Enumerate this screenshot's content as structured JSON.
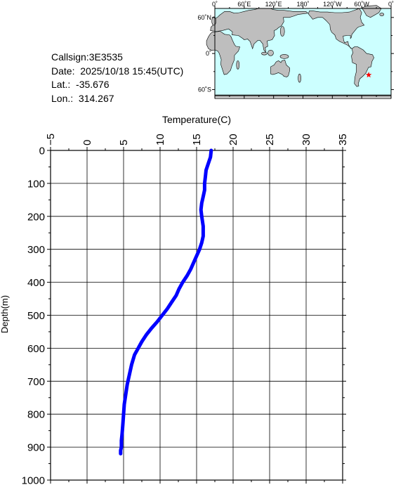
{
  "station": {
    "callsign_label": "Callsign:",
    "callsign": "3E3535",
    "date_label": "Date:",
    "date": "2025/10/18 15:45(UTC)",
    "lat_label": "Lat.:",
    "lat": "-35.676",
    "lon_label": "Lon.:",
    "lon": "314.267"
  },
  "map": {
    "lon_ticks": [
      "0˚",
      "60˚E",
      "120˚E",
      "180˚",
      "120˚W",
      "60˚W",
      "0˚"
    ],
    "lat_ticks": [
      "60˚N",
      "0˚",
      "60˚S"
    ],
    "ocean_color": "#ccffff",
    "land_color": "#bebebe",
    "marker_color": "#ff0000",
    "marker_icon": "star-icon",
    "marker_lon": 314.267,
    "marker_lat": -35.676
  },
  "chart_data": {
    "type": "line",
    "xlabel": "Temperature(C)",
    "ylabel": "Depth(m)",
    "xlim": [
      -5,
      35
    ],
    "ylim": [
      0,
      1000
    ],
    "x_ticks": [
      -5,
      0,
      5,
      10,
      15,
      20,
      25,
      30,
      35
    ],
    "y_ticks": [
      0,
      100,
      200,
      300,
      400,
      500,
      600,
      700,
      800,
      900,
      1000
    ],
    "x_tick_labels": [
      "−5",
      "0",
      "5",
      "10",
      "15",
      "20",
      "25",
      "30",
      "35"
    ],
    "y_tick_labels": [
      "0",
      "100",
      "200",
      "300",
      "400",
      "500",
      "600",
      "700",
      "800",
      "900",
      "1000"
    ],
    "grid": true,
    "line_color": "#0000ff",
    "series": [
      {
        "x": [
          17.0,
          16.9,
          16.6,
          16.3,
          16.2,
          16.1,
          16.1,
          15.9,
          15.7,
          15.6,
          15.7,
          15.9,
          15.9,
          15.7,
          15.4,
          15.0,
          14.6,
          14.2,
          13.7,
          13.1,
          12.6,
          12.2,
          11.6,
          11.0,
          10.3,
          9.6,
          8.8,
          8.1,
          7.5,
          7.0,
          6.5,
          6.1,
          5.8,
          5.5,
          5.3,
          5.1,
          5.0,
          4.9,
          4.8,
          4.7,
          4.7,
          4.6,
          4.6
        ],
        "y": [
          0,
          20,
          40,
          60,
          80,
          100,
          120,
          140,
          160,
          180,
          200,
          230,
          260,
          280,
          300,
          320,
          340,
          360,
          380,
          400,
          420,
          440,
          460,
          480,
          500,
          520,
          540,
          560,
          580,
          600,
          620,
          650,
          680,
          710,
          740,
          770,
          800,
          830,
          860,
          880,
          900,
          910,
          920
        ]
      }
    ]
  }
}
